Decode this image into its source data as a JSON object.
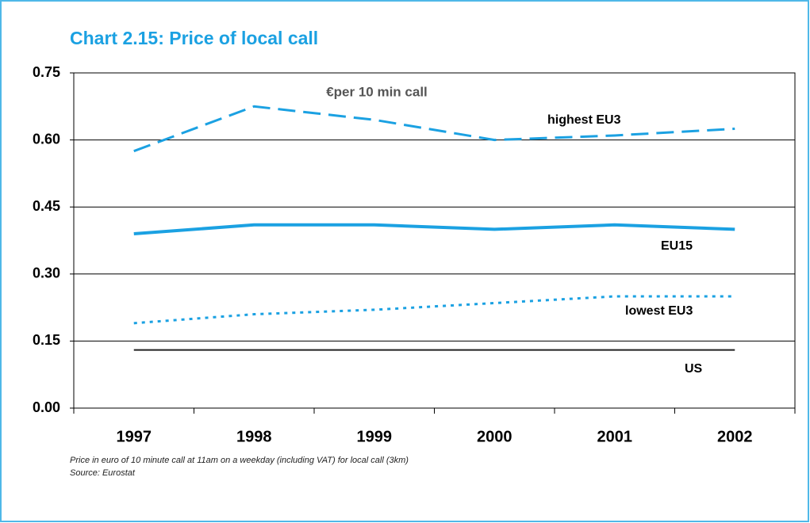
{
  "chart_data": {
    "type": "line",
    "title": "Chart 2.15:  Price of local call",
    "subtitle": "€per 10 min call",
    "categories": [
      "1997",
      "1998",
      "1999",
      "2000",
      "2001",
      "2002"
    ],
    "series": [
      {
        "name": "highest EU3",
        "color": "#1ba1e2",
        "dash": "dashed",
        "values": [
          0.575,
          0.675,
          0.645,
          0.6,
          0.61,
          0.625
        ]
      },
      {
        "name": "EU15",
        "color": "#1ba1e2",
        "dash": "solid",
        "values": [
          0.39,
          0.41,
          0.41,
          0.4,
          0.41,
          0.4
        ]
      },
      {
        "name": "lowest EU3",
        "color": "#1ba1e2",
        "dash": "dotted",
        "values": [
          0.19,
          0.21,
          0.22,
          0.235,
          0.25,
          0.25
        ]
      },
      {
        "name": "US",
        "color": "#222222",
        "dash": "solid",
        "values": [
          0.13,
          0.13,
          0.13,
          0.13,
          0.13,
          0.13
        ]
      }
    ],
    "ylim": [
      0,
      0.75
    ],
    "yticks": [
      {
        "value": 0,
        "label": "0.00"
      },
      {
        "value": 0.15,
        "label": "0.15"
      },
      {
        "value": 0.3,
        "label": "0.30"
      },
      {
        "value": 0.45,
        "label": "0.45"
      },
      {
        "value": 0.6,
        "label": "0.60"
      },
      {
        "value": 0.75,
        "label": "0.75"
      }
    ],
    "grid": true,
    "notes": [
      "Price  in euro of 10 minute call at 11am on a weekday (including VAT) for  local call (3km)",
      "Source:  Eurostat"
    ]
  }
}
